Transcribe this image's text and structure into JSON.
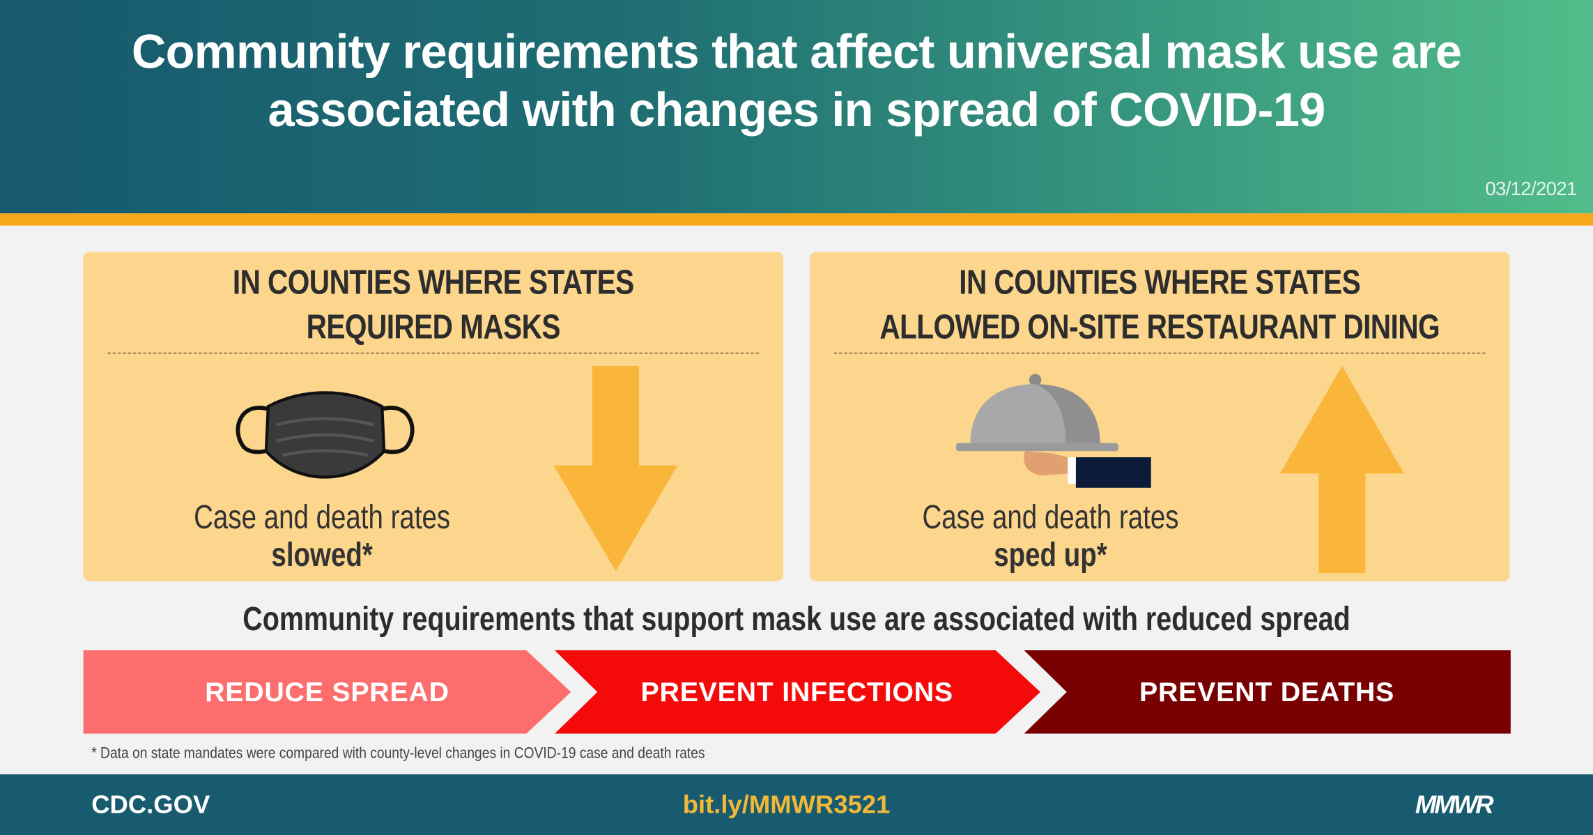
{
  "header": {
    "title": "Community requirements that affect universal mask use are associated with changes in spread of COVID-19",
    "date": "03/12/2021"
  },
  "panels": [
    {
      "heading_line1": "IN COUNTIES WHERE STATES",
      "heading_line2": "REQUIRED MASKS",
      "icon": "face-mask-icon",
      "caption": "Case and death rates",
      "effect": "slowed*",
      "arrow": "arrow-down-icon"
    },
    {
      "heading_line1": "IN COUNTIES WHERE STATES",
      "heading_line2": "ALLOWED ON-SITE RESTAURANT DINING",
      "icon": "serving-cloche-icon",
      "caption": "Case and death rates",
      "effect": "sped up*",
      "arrow": "arrow-up-icon"
    }
  ],
  "tagline": "Community requirements that support mask use are associated with reduced spread",
  "steps": [
    {
      "label": "REDUCE SPREAD",
      "color": "#fc6d6d"
    },
    {
      "label": "PREVENT INFECTIONS",
      "color": "#f50a0a"
    },
    {
      "label": "PREVENT DEATHS",
      "color": "#780000"
    }
  ],
  "footnote": "* Data on state mandates were compared with county-level changes in COVID-19 case and death rates",
  "footer": {
    "site": "CDC.GOV",
    "link": "bit.ly/MMWR3521",
    "logo": "MMWR"
  },
  "colors": {
    "panel": "#fdd68d",
    "arrow": "#f9b63a",
    "accent": "#f6a81c",
    "footer": "#185b6e",
    "link": "#f1b83a"
  }
}
